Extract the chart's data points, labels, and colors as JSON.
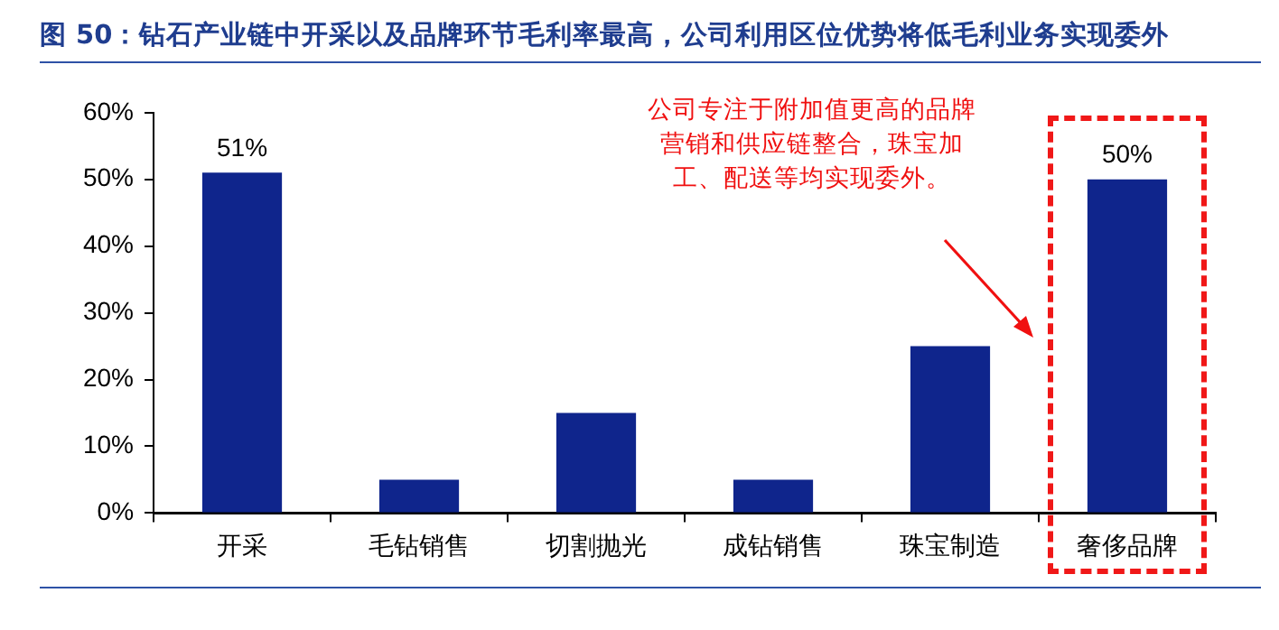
{
  "chart_data": {
    "type": "bar",
    "title": "图 50：钻石产业链中开采以及品牌环节毛利率最高，公司利用区位优势将低毛利业务实现委外",
    "categories": [
      "开采",
      "毛钻销售",
      "切割抛光",
      "成钻销售",
      "珠宝制造",
      "奢侈品牌"
    ],
    "values": [
      51,
      5,
      15,
      5,
      25,
      50
    ],
    "color": "#0f258c",
    "value_labels": [
      "51%",
      null,
      null,
      null,
      null,
      "50%"
    ],
    "ylim": [
      0,
      60
    ],
    "yticks": [
      {
        "value": 0,
        "label": "0%"
      },
      {
        "value": 10,
        "label": "10%"
      },
      {
        "value": 20,
        "label": "20%"
      },
      {
        "value": 30,
        "label": "30%"
      },
      {
        "value": 40,
        "label": "40%"
      },
      {
        "value": 50,
        "label": "50%"
      },
      {
        "value": 60,
        "label": "60%"
      }
    ],
    "grid": false,
    "legend": false,
    "annotations": [
      "公司专注于附加值更高的品牌营销和供应链整合，珠宝加工、配送等均实现委外。"
    ]
  }
}
